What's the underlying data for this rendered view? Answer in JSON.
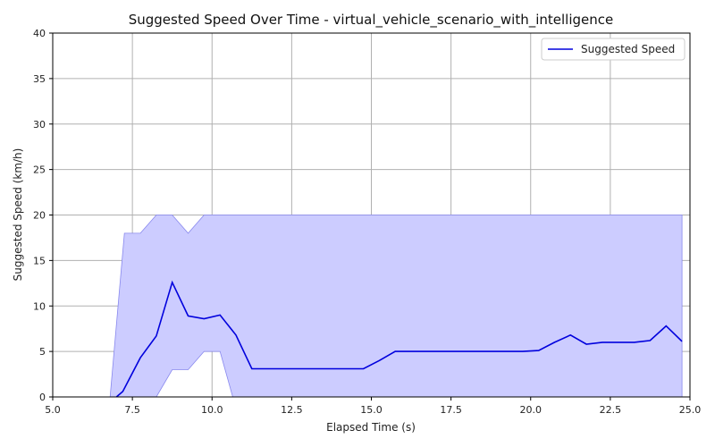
{
  "chart_data": {
    "type": "line",
    "title": "Suggested Speed Over Time - virtual_vehicle_scenario_with_intelligence",
    "xlabel": "Elapsed Time (s)",
    "ylabel": "Suggested Speed (km/h)",
    "xlim": [
      5.0,
      25.0
    ],
    "ylim": [
      0,
      40
    ],
    "xticks": [
      "5.0",
      "7.5",
      "10.0",
      "12.5",
      "15.0",
      "17.5",
      "20.0",
      "22.5",
      "25.0"
    ],
    "yticks": [
      "0",
      "5",
      "10",
      "15",
      "20",
      "25",
      "30",
      "35",
      "40"
    ],
    "grid": true,
    "legend": {
      "position": "top-right",
      "entries": [
        "Suggested Speed"
      ]
    },
    "colors": {
      "line": "#0000dd",
      "band_fill": "#ccccff",
      "band_edge": "#8888ee",
      "grid": "#b0b0b0"
    },
    "series": [
      {
        "name": "Suggested Speed",
        "x": [
          7.0,
          7.2,
          7.75,
          8.25,
          8.75,
          9.25,
          9.75,
          10.25,
          10.75,
          11.25,
          11.75,
          12.25,
          12.75,
          13.25,
          13.75,
          14.25,
          14.75,
          15.25,
          15.75,
          16.25,
          16.75,
          17.25,
          17.75,
          18.25,
          18.75,
          19.25,
          19.75,
          20.25,
          20.75,
          21.25,
          21.75,
          22.25,
          22.75,
          23.25,
          23.75,
          24.25,
          24.75
        ],
        "y": [
          0,
          0.6,
          4.3,
          6.7,
          12.6,
          8.9,
          8.6,
          9.0,
          6.8,
          3.1,
          3.1,
          3.1,
          3.1,
          3.1,
          3.1,
          3.1,
          3.1,
          4.0,
          5.0,
          5.0,
          5.0,
          5.0,
          5.0,
          5.0,
          5.0,
          5.0,
          5.0,
          5.1,
          6.0,
          6.8,
          5.8,
          6.0,
          6.0,
          6.0,
          6.2,
          7.8,
          6.1
        ]
      }
    ],
    "band": {
      "x": [
        6.8,
        7.25,
        7.75,
        8.25,
        8.75,
        9.25,
        9.75,
        10.25,
        10.65,
        11.25,
        24.75
      ],
      "upper": [
        0,
        18,
        18,
        20,
        20,
        18,
        20,
        20,
        20,
        20,
        20
      ],
      "lower": [
        0,
        0,
        0,
        0,
        3,
        3,
        5,
        5,
        0,
        0,
        0
      ]
    }
  }
}
